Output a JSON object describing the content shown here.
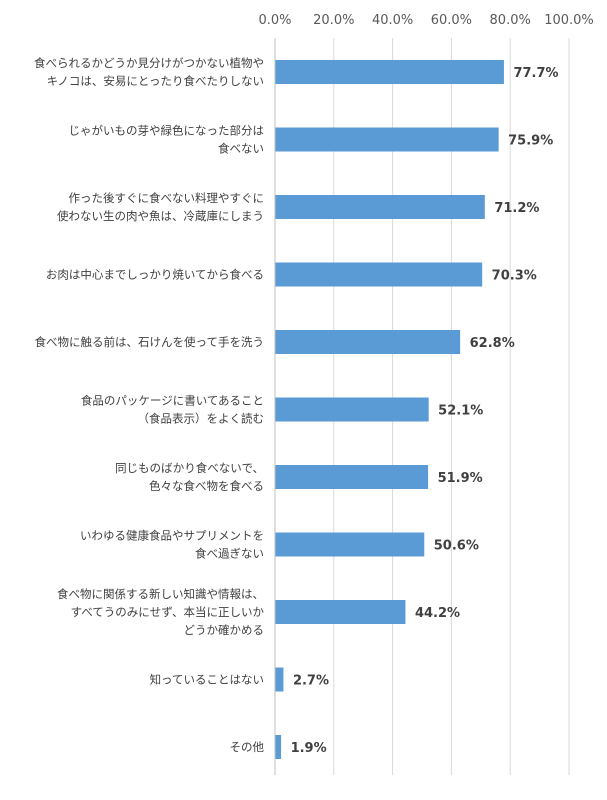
{
  "chart_data": {
    "type": "bar",
    "orientation": "horizontal",
    "categories": [
      [
        "食べられるかどうか見分けがつかない植物や",
        "キノコは、安易にとったり食べたりしない"
      ],
      [
        "じゃがいもの芽や緑色になった部分は",
        "食べない"
      ],
      [
        "作った後すぐに食べない料理やすぐに",
        "使わない生の肉や魚は、冷蔵庫にしまう"
      ],
      [
        "お肉は中心までしっかり焼いてから食べる"
      ],
      [
        "食べ物に触る前は、石けんを使って手を洗う"
      ],
      [
        "食品のパッケージに書いてあること",
        "（食品表示）をよく読む"
      ],
      [
        "同じものばかり食べないで、",
        "色々な食べ物を食べる"
      ],
      [
        "いわゆる健康食品やサプリメントを",
        "食べ過ぎない"
      ],
      [
        "食べ物に関係する新しい知識や情報は、",
        "すべてうのみにせず、本当に正しいか",
        "どうか確かめる"
      ],
      [
        "知っていることはない"
      ],
      [
        "その他"
      ]
    ],
    "values": [
      77.7,
      75.9,
      71.2,
      70.3,
      62.8,
      52.1,
      51.9,
      50.6,
      44.2,
      2.7,
      1.9
    ],
    "value_labels": [
      "77.7%",
      "75.9%",
      "71.2%",
      "70.3%",
      "62.8%",
      "52.1%",
      "51.9%",
      "50.6%",
      "44.2%",
      "2.7%",
      "1.9%"
    ],
    "x_ticks": [
      "0.0%",
      "20.0%",
      "40.0%",
      "60.0%",
      "80.0%",
      "100.0%"
    ],
    "xlim": [
      0,
      100
    ],
    "axis_position": "top",
    "grid": true,
    "bar_color": "#5b9bd5",
    "title": "",
    "xlabel": "",
    "ylabel": ""
  }
}
